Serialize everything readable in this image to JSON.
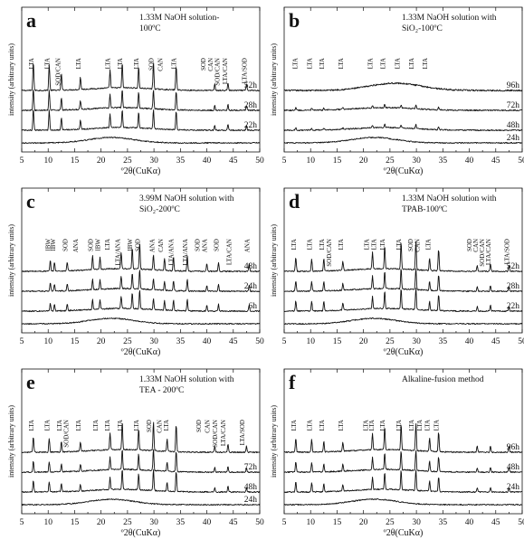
{
  "figure": {
    "panels": [
      {
        "letter": "a",
        "title_lines": [
          "1.33M NaOH solution-",
          "100ºC"
        ],
        "xlabel": "º2θ(CuKα)",
        "ylabel": "intensity (arbitrary units)",
        "xlim": [
          5,
          50
        ],
        "xticks": [
          5,
          10,
          15,
          20,
          25,
          30,
          35,
          40,
          45,
          50
        ],
        "series": [
          {
            "name": "52h",
            "style": "crystalline"
          },
          {
            "name": "28h",
            "style": "crystalline"
          },
          {
            "name": "22h",
            "style": "crystalline"
          },
          {
            "name": "",
            "style": "amorphous"
          }
        ],
        "peak_positions": [
          7.2,
          10.2,
          12.5,
          16.1,
          21.7,
          24.0,
          27.1,
          29.9,
          34.2,
          41.5,
          44.0,
          47.5
        ],
        "peak_heights": [
          0.95,
          0.85,
          0.55,
          0.4,
          0.6,
          0.8,
          0.7,
          0.85,
          0.8,
          0.2,
          0.25,
          0.2
        ],
        "annotations": [
          "LTA",
          "LTA",
          "SOD/CAN",
          "LTA",
          "LTA",
          "LTA",
          "LTA",
          "SOD",
          "CAN",
          "LTA",
          "SOD",
          "CAN",
          "SOD/CAN",
          "LTA/CAN",
          "LTA/SOD"
        ],
        "annotation_x": [
          7.2,
          10.2,
          12.3,
          16.1,
          21.7,
          24.0,
          27.1,
          29.9,
          31.6,
          34.2,
          39.7,
          41.1,
          42.4,
          43.8,
          47.5
        ]
      },
      {
        "letter": "b",
        "title_lines": [
          "1.33M NaOH solution with",
          "SiO₂-100ºC"
        ],
        "xlabel": "º2θ(CuKα)",
        "ylabel": "intensity (arbitrary units)",
        "xlim": [
          5,
          50
        ],
        "xticks": [
          5,
          10,
          15,
          20,
          25,
          30,
          35,
          40,
          45,
          50
        ],
        "series": [
          {
            "name": "96h",
            "style": "hump"
          },
          {
            "name": "72h",
            "style": "weak"
          },
          {
            "name": "48h",
            "style": "weak"
          },
          {
            "name": "24h",
            "style": "amorphous"
          }
        ],
        "peak_positions": [
          7.2,
          10.2,
          12.5,
          16.1,
          21.7,
          24.0,
          27.1,
          29.9,
          34.2
        ],
        "peak_heights": [
          0.25,
          0.2,
          0.2,
          0.15,
          0.2,
          0.35,
          0.3,
          0.4,
          0.25
        ],
        "annotations": [
          "LTA",
          "LTA",
          "LTA",
          "LTA",
          "LTA",
          "LTA",
          "LTA",
          "LTA",
          "LTA"
        ],
        "annotation_x": [
          7.5,
          10.2,
          12.5,
          16.1,
          21.7,
          24.1,
          26.8,
          29.5,
          32.0
        ]
      },
      {
        "letter": "c",
        "title_lines": [
          "3.99M NaOH solution with",
          "SiO₂-200ºC"
        ],
        "xlabel": "º2θ(CuKα)",
        "ylabel": "intensity (arbitrary units)",
        "xlim": [
          5,
          50
        ],
        "xticks": [
          5,
          10,
          15,
          20,
          25,
          30,
          35,
          40,
          45,
          50
        ],
        "series": [
          {
            "name": "48h",
            "style": "crystalline"
          },
          {
            "name": "24h",
            "style": "crystalline"
          },
          {
            "name": "6h",
            "style": "crystalline"
          },
          {
            "name": "",
            "style": "amorphous"
          }
        ],
        "peak_positions": [
          10.4,
          11.2,
          13.6,
          18.4,
          19.8,
          23.8,
          25.9,
          27.3,
          29.9,
          32.0,
          33.7,
          36.3,
          40.0,
          42.2,
          48.0
        ],
        "peak_heights": [
          0.35,
          0.3,
          0.3,
          0.45,
          0.4,
          0.55,
          0.7,
          0.85,
          0.5,
          0.4,
          0.45,
          0.5,
          0.25,
          0.3,
          0.25
        ],
        "annotations": [
          "IBW",
          "IBW",
          "SOD",
          "ANA",
          "SOD",
          "IBW",
          "LTA",
          "LTA/ANA",
          "IBW",
          "SOD",
          "ANA",
          "CAN",
          "LTA/ANA",
          "LTA/ANA",
          "SOD",
          "ANA",
          "SOD",
          "LTA/CAN",
          "ANA"
        ],
        "annotation_x": [
          10.4,
          11.3,
          13.6,
          15.6,
          18.4,
          19.8,
          21.6,
          23.6,
          25.9,
          27.3,
          30.1,
          31.7,
          33.7,
          36.3,
          38.6,
          40.0,
          42.2,
          44.6,
          48.0
        ]
      },
      {
        "letter": "d",
        "title_lines": [
          "1.33M NaOH solution with",
          "TPAB-100ºC"
        ],
        "xlabel": "º2θ(CuKα)",
        "ylabel": "intensity (arbitrary units)",
        "xlim": [
          5,
          50
        ],
        "xticks": [
          5,
          10,
          15,
          20,
          25,
          30,
          35,
          40,
          45,
          50
        ],
        "series": [
          {
            "name": "52h",
            "style": "crystalline"
          },
          {
            "name": "28h",
            "style": "crystalline"
          },
          {
            "name": "22h",
            "style": "crystalline"
          },
          {
            "name": "",
            "style": "amorphous"
          }
        ],
        "peak_positions": [
          7.2,
          10.2,
          12.5,
          16.1,
          21.7,
          24.0,
          27.1,
          29.9,
          32.5,
          34.2,
          41.5,
          44.0,
          47.5
        ],
        "peak_heights": [
          0.45,
          0.4,
          0.4,
          0.3,
          0.55,
          0.75,
          0.9,
          0.95,
          0.4,
          0.7,
          0.2,
          0.25,
          0.2
        ],
        "annotations": [
          "LTA",
          "LTA",
          "LTA",
          "SOD/CAN",
          "LTA",
          "LTA",
          "LTA",
          "LTA",
          "LTA",
          "SOD",
          "CAN",
          "LTA",
          "SOD",
          "CAN",
          "SOD/CAN",
          "LTA/CAN",
          "LTA/SOD"
        ],
        "annotation_x": [
          7.2,
          10.2,
          12.5,
          13.9,
          16.1,
          21.0,
          22.4,
          24.0,
          27.1,
          29.3,
          30.6,
          32.6,
          40.4,
          41.6,
          42.8,
          44.0,
          47.5
        ]
      },
      {
        "letter": "e",
        "title_lines": [
          "1.33M NaOH solution with",
          "TEA - 200ºC"
        ],
        "xlabel": "º2θ(CuKα)",
        "ylabel": "intensity (arbitrary units)",
        "xlim": [
          5,
          50
        ],
        "xticks": [
          5,
          10,
          15,
          20,
          25,
          30,
          35,
          40,
          45,
          50
        ],
        "series": [
          {
            "name": "",
            "style": "crystalline"
          },
          {
            "name": "72h",
            "style": "crystalline"
          },
          {
            "name": "48h",
            "style": "crystalline"
          },
          {
            "name": "24h",
            "style": "amorphous"
          }
        ],
        "peak_positions": [
          7.2,
          10.2,
          12.5,
          16.1,
          21.7,
          24.0,
          27.1,
          29.9,
          32.5,
          34.2,
          41.5,
          44.0,
          47.5
        ],
        "peak_heights": [
          0.5,
          0.45,
          0.35,
          0.3,
          0.55,
          0.9,
          0.7,
          0.95,
          0.4,
          0.9,
          0.2,
          0.25,
          0.2
        ],
        "annotations": [
          "LTA",
          "LTA",
          "LTA",
          "SOD/CAN",
          "LTA",
          "LTA",
          "LTA",
          "LTA",
          "LTA",
          "SOD",
          "CAN",
          "LTA",
          "SOD",
          "CAN",
          "SOD/CAN",
          "LTA/CAN",
          "LTA/SOD"
        ],
        "annotation_x": [
          7.2,
          10.2,
          12.5,
          13.8,
          16.1,
          19.4,
          21.6,
          24.0,
          27.1,
          29.5,
          31.4,
          32.7,
          38.9,
          40.5,
          42.0,
          43.5,
          47.1
        ]
      },
      {
        "letter": "f",
        "title_lines": [
          "Alkaline-fusion method"
        ],
        "xlabel": "º2θ(CuKα)",
        "ylabel": "intensity (arbitrary units)",
        "xlim": [
          5,
          50
        ],
        "xticks": [
          5,
          10,
          15,
          20,
          25,
          30,
          35,
          40,
          45,
          50
        ],
        "series": [
          {
            "name": "96h",
            "style": "crystalline"
          },
          {
            "name": "48h",
            "style": "crystalline"
          },
          {
            "name": "24h",
            "style": "crystalline"
          },
          {
            "name": "",
            "style": "amorphous"
          }
        ],
        "peak_positions": [
          7.2,
          10.2,
          12.5,
          16.1,
          21.7,
          24.0,
          27.1,
          29.9,
          32.5,
          34.2,
          41.5,
          44.0,
          47.5
        ],
        "peak_heights": [
          0.45,
          0.4,
          0.35,
          0.3,
          0.55,
          0.75,
          0.85,
          0.9,
          0.45,
          0.65,
          0.2,
          0.2,
          0.2
        ],
        "annotations": [
          "LTA",
          "LTA",
          "LTA",
          "LTA",
          "LTA",
          "LTA",
          "LTA",
          "LTA",
          "LTA",
          "LTA",
          "LTA",
          "LTA"
        ],
        "annotation_x": [
          7.2,
          10.2,
          12.5,
          16.1,
          20.8,
          21.9,
          24.0,
          27.1,
          29.5,
          31.0,
          32.5,
          34.2
        ]
      }
    ]
  },
  "chart_data": [
    {
      "type": "line",
      "title": "1.33M NaOH solution- 100ºC",
      "xlabel": "º2θ(CuKα)",
      "ylabel": "intensity (arbitrary units)",
      "xlim": [
        5,
        50
      ],
      "series": [
        {
          "name": "52h"
        },
        {
          "name": "28h"
        },
        {
          "name": "22h"
        }
      ]
    },
    {
      "type": "line",
      "title": "1.33M NaOH solution with SiO₂-100ºC",
      "xlabel": "º2θ(CuKα)",
      "ylabel": "intensity (arbitrary units)",
      "xlim": [
        5,
        50
      ],
      "series": [
        {
          "name": "96h"
        },
        {
          "name": "72h"
        },
        {
          "name": "48h"
        },
        {
          "name": "24h"
        }
      ]
    },
    {
      "type": "line",
      "title": "3.99M NaOH solution with SiO₂-200ºC",
      "xlabel": "º2θ(CuKα)",
      "ylabel": "intensity (arbitrary units)",
      "xlim": [
        5,
        50
      ],
      "series": [
        {
          "name": "48h"
        },
        {
          "name": "24h"
        },
        {
          "name": "6h"
        }
      ]
    },
    {
      "type": "line",
      "title": "1.33M NaOH solution with TPAB-100ºC",
      "xlabel": "º2θ(CuKα)",
      "ylabel": "intensity (arbitrary units)",
      "xlim": [
        5,
        50
      ],
      "series": [
        {
          "name": "52h"
        },
        {
          "name": "28h"
        },
        {
          "name": "22h"
        }
      ]
    },
    {
      "type": "line",
      "title": "1.33M NaOH solution with TEA - 200ºC",
      "xlabel": "º2θ(CuKα)",
      "ylabel": "intensity (arbitrary units)",
      "xlim": [
        5,
        50
      ],
      "series": [
        {
          "name": "72h"
        },
        {
          "name": "48h"
        },
        {
          "name": "24h"
        }
      ]
    },
    {
      "type": "line",
      "title": "Alkaline-fusion method",
      "xlabel": "º2θ(CuKα)",
      "ylabel": "intensity (arbitrary units)",
      "xlim": [
        5,
        50
      ],
      "series": [
        {
          "name": "96h"
        },
        {
          "name": "48h"
        },
        {
          "name": "24h"
        }
      ]
    }
  ]
}
